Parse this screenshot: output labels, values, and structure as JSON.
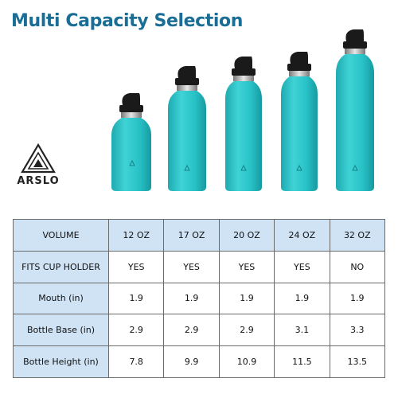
{
  "title": "Multi Capacity Selection",
  "brand": {
    "name": "ARSLO",
    "logo_icon": "triangle-logo-icon"
  },
  "colors": {
    "title": "#1a6e96",
    "bottle": "#27c2c6",
    "cap": "#1a1a1a",
    "header": "#cfe3f5"
  },
  "bottles": [
    "12 OZ",
    "17 OZ",
    "20 OZ",
    "24 OZ",
    "32 OZ"
  ],
  "table": {
    "header": {
      "label": "VOLUME",
      "values": [
        "12 OZ",
        "17 OZ",
        "20 OZ",
        "24 OZ",
        "32 OZ"
      ]
    },
    "rows": [
      {
        "label": "FITS CUP HOLDER",
        "values": [
          "YES",
          "YES",
          "YES",
          "YES",
          "NO"
        ]
      },
      {
        "label": "Mouth (in)",
        "values": [
          "1.9",
          "1.9",
          "1.9",
          "1.9",
          "1.9"
        ]
      },
      {
        "label": "Bottle Base (in)",
        "values": [
          "2.9",
          "2.9",
          "2.9",
          "3.1",
          "3.3"
        ]
      },
      {
        "label": "Bottle Height (in)",
        "values": [
          "7.8",
          "9.9",
          "10.9",
          "11.5",
          "13.5"
        ]
      }
    ]
  }
}
